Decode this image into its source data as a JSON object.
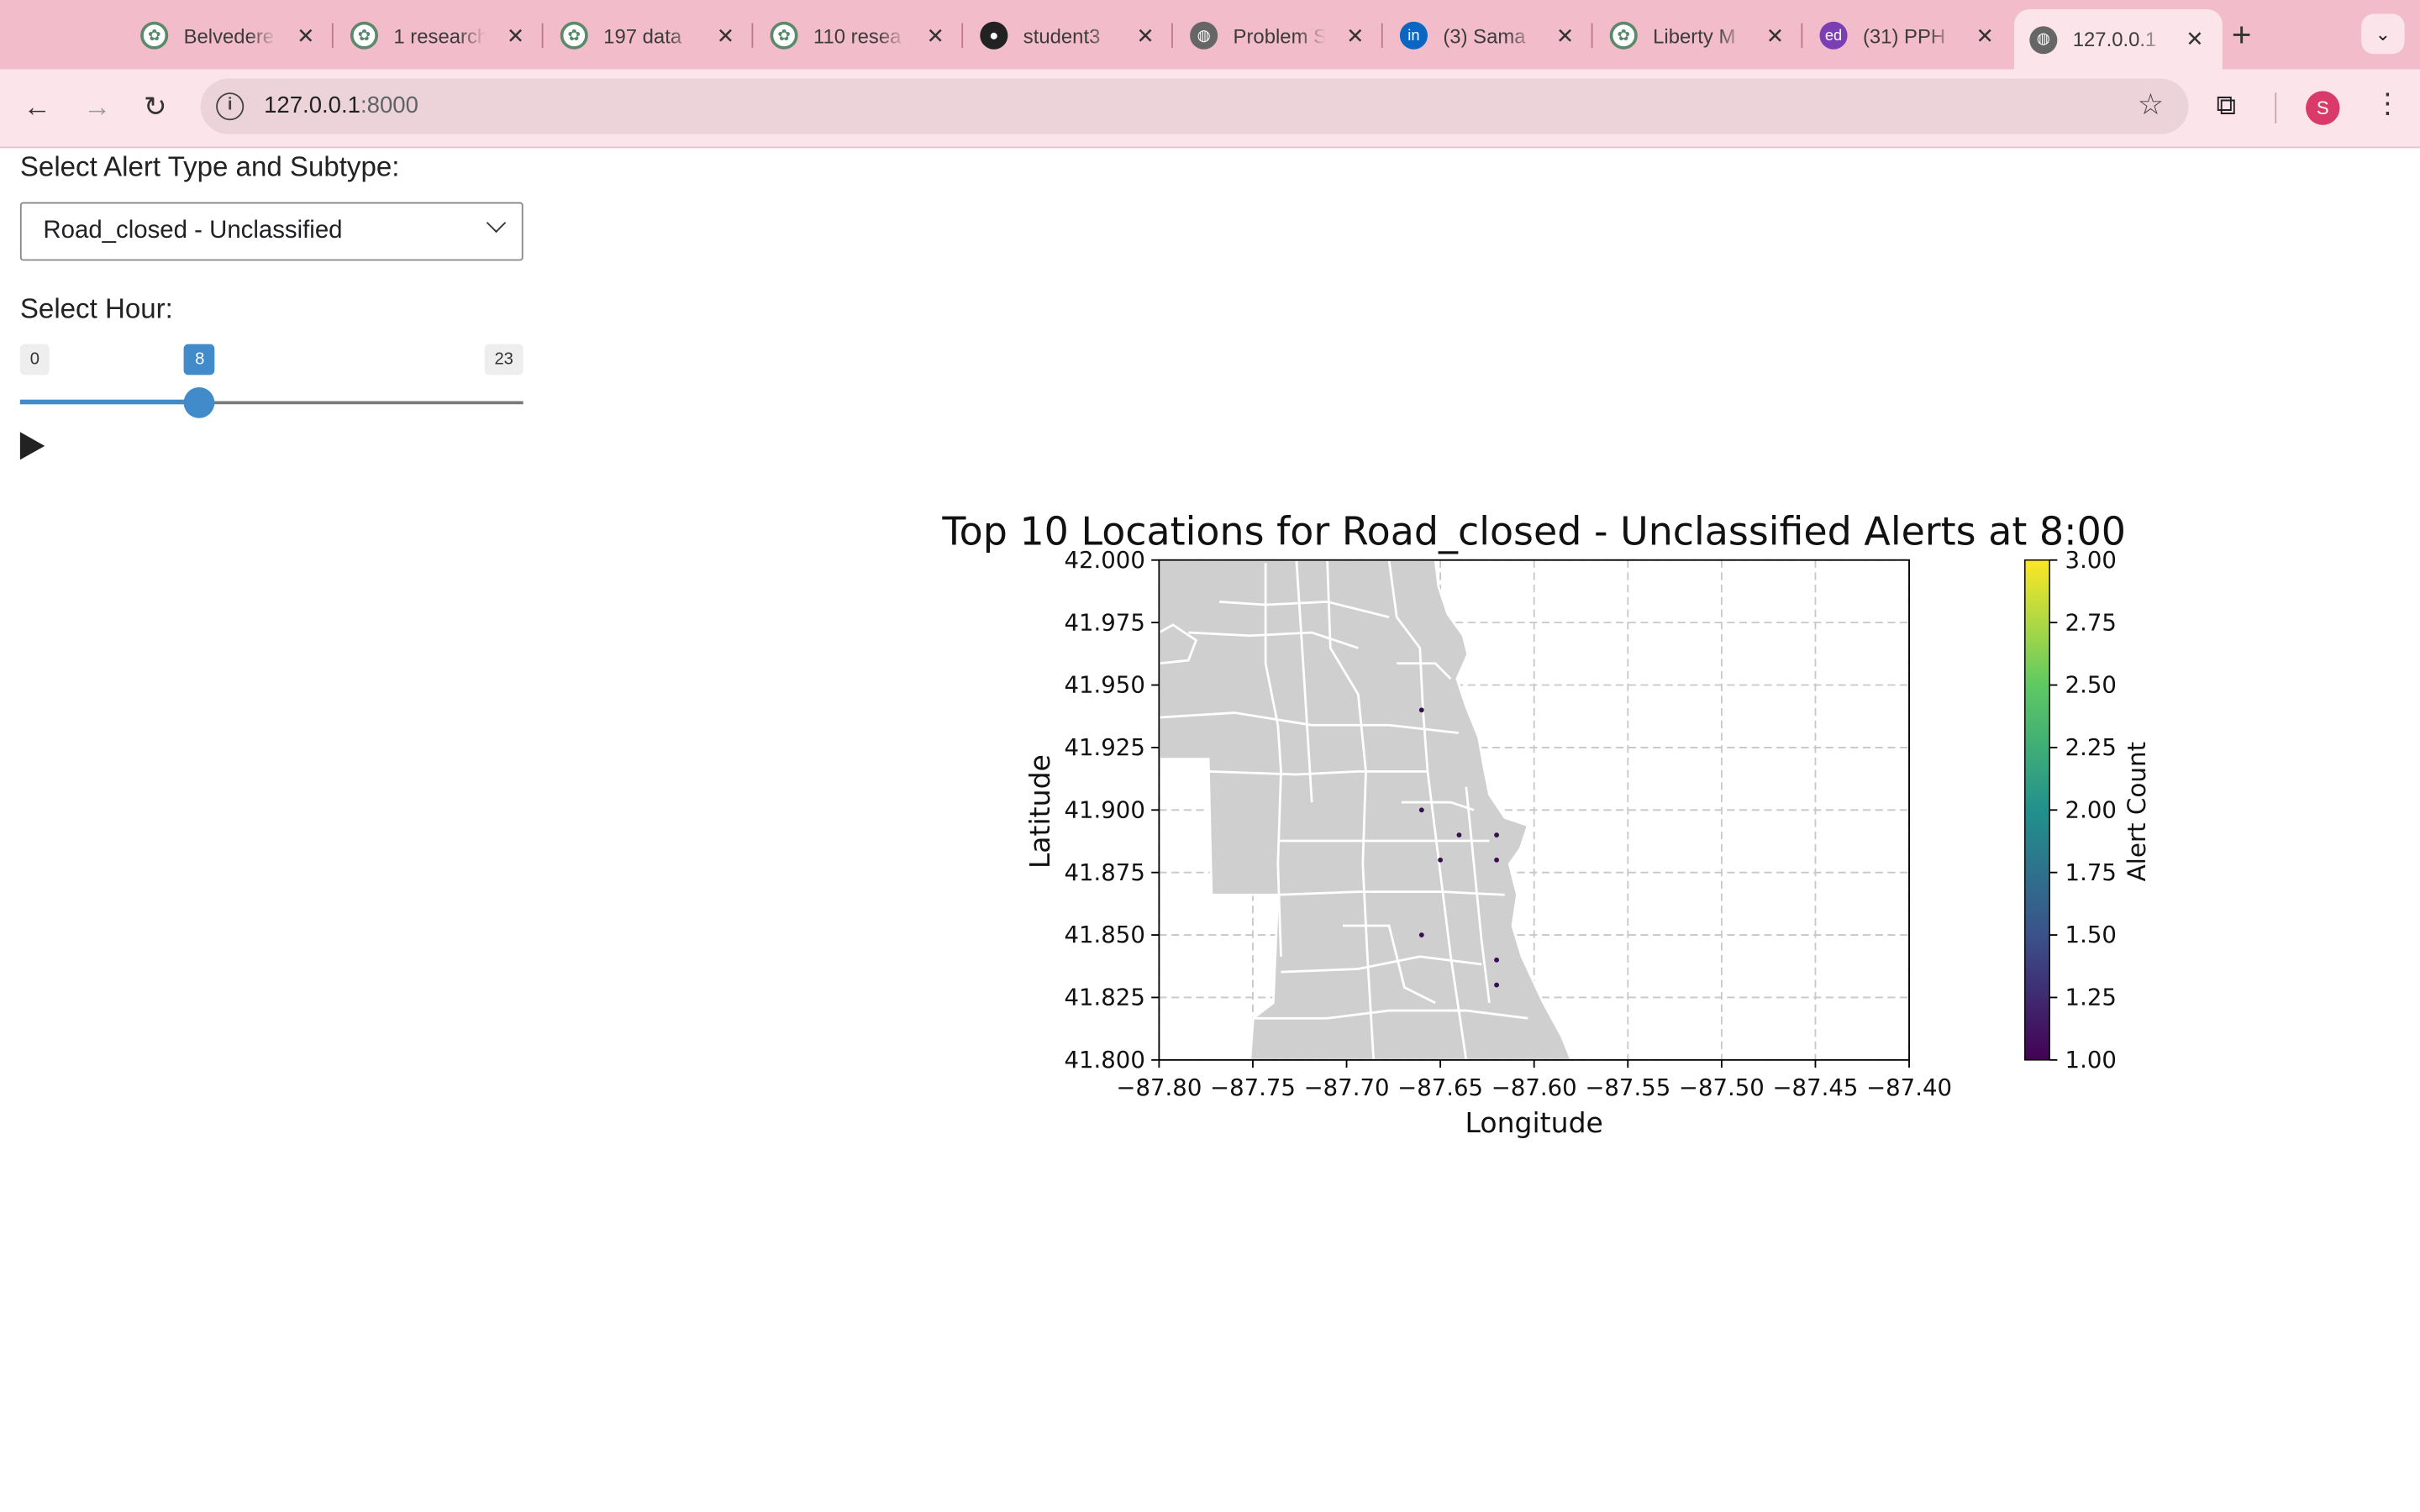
{
  "browser": {
    "tabs": [
      {
        "title": "Belvedere",
        "icon": "research-app-icon",
        "active": false
      },
      {
        "title": "1 research",
        "icon": "research-app-icon",
        "active": false
      },
      {
        "title": "197 data",
        "icon": "research-app-icon",
        "active": false
      },
      {
        "title": "110 resea",
        "icon": "research-app-icon",
        "active": false
      },
      {
        "title": "student3",
        "icon": "github-icon",
        "active": false
      },
      {
        "title": "Problem S",
        "icon": "globe-icon",
        "active": false
      },
      {
        "title": "(3) Sama",
        "icon": "linkedin-icon",
        "active": false
      },
      {
        "title": "Liberty M",
        "icon": "research-app-icon",
        "active": false
      },
      {
        "title": "(31) PPH",
        "icon": "ed-icon",
        "active": false
      },
      {
        "title": "127.0.0.1",
        "icon": "globe-icon",
        "active": true
      }
    ],
    "url_host": "127.0.0.1",
    "url_port": ":8000",
    "profile_initial": "S",
    "colors": {
      "tabstrip": "#f2bccb",
      "toolbar": "#fbe4ea",
      "avatar": "#d93a6a"
    }
  },
  "controls": {
    "select_label": "Select Alert Type and Subtype:",
    "select_value": "Road_closed - Unclassified",
    "hour_label": "Select Hour:",
    "slider": {
      "min": 0,
      "max": 23,
      "value": 8,
      "min_label": "0",
      "max_label": "23",
      "value_label": "8"
    },
    "accent": "#428bca"
  },
  "chart_data": {
    "type": "scatter",
    "title": "Top 10 Locations for Road_closed - Unclassified Alerts at 8:00",
    "xlabel": "Longitude",
    "ylabel": "Latitude",
    "xlim": [
      -87.8,
      -87.4
    ],
    "ylim": [
      41.8,
      42.0
    ],
    "xticks": [
      "−87.80",
      "−87.75",
      "−87.70",
      "−87.65",
      "−87.60",
      "−87.55",
      "−87.50",
      "−87.45",
      "−87.40"
    ],
    "yticks": [
      "41.800",
      "41.825",
      "41.850",
      "41.875",
      "41.900",
      "41.925",
      "41.950",
      "41.975",
      "42.000"
    ],
    "grid": true,
    "background_map": "Chicago neighborhood boundaries (gray)",
    "points": [
      {
        "x": -87.66,
        "y": 41.94,
        "count": 1
      },
      {
        "x": -87.66,
        "y": 41.9,
        "count": 1
      },
      {
        "x": -87.64,
        "y": 41.89,
        "count": 1
      },
      {
        "x": -87.62,
        "y": 41.89,
        "count": 1
      },
      {
        "x": -87.65,
        "y": 41.88,
        "count": 1
      },
      {
        "x": -87.62,
        "y": 41.88,
        "count": 1
      },
      {
        "x": -87.66,
        "y": 41.85,
        "count": 1
      },
      {
        "x": -87.62,
        "y": 41.84,
        "count": 1
      },
      {
        "x": -87.62,
        "y": 41.83,
        "count": 1
      }
    ],
    "colorbar": {
      "label": "Alert Count",
      "min": 1.0,
      "max": 3.0,
      "ticks": [
        "1.00",
        "1.25",
        "1.50",
        "1.75",
        "2.00",
        "2.25",
        "2.50",
        "2.75",
        "3.00"
      ],
      "colormap": "viridis"
    }
  }
}
